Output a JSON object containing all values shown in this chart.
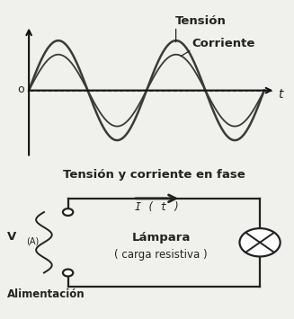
{
  "bg_color": "#f0f0ec",
  "wave_color": "#3a3a3a",
  "line_color": "#222222",
  "axis_color": "#111111",
  "dashed_color": "#888888",
  "tension_label": "Tensión",
  "corriente_label": "Corriente",
  "phase_label": "Tensión y corriente en fase",
  "tension_amp": 1.0,
  "corriente_amp": 0.72,
  "t_label": "t",
  "o_label": "o",
  "i_label": "I ( t )",
  "v_label": "V",
  "a_label": "(A)",
  "alimentacion_label": "Alimentación",
  "lampara_label": "Lámpara",
  "carga_label": "( carga resistiva )"
}
